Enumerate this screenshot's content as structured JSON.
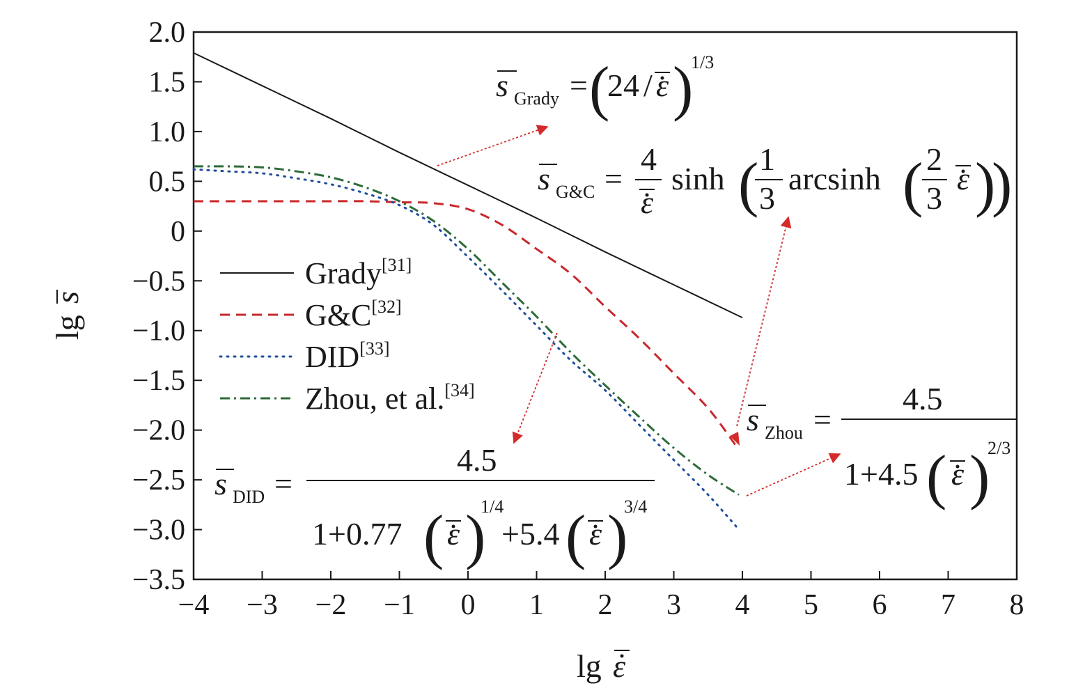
{
  "chart_data": {
    "type": "line",
    "x_range": [
      -4,
      8
    ],
    "y_range": [
      -3.5,
      2.0
    ],
    "x_ticks": [
      "−4",
      "−3",
      "−2",
      "−1",
      "0",
      "1",
      "2",
      "3",
      "4",
      "5",
      "6",
      "7",
      "8"
    ],
    "y_ticks": [
      "2.0",
      "1.5",
      "1.0",
      "0.5",
      "0",
      "−0.5",
      "−1.0",
      "−1.5",
      "−2.0",
      "−2.5",
      "−3.0",
      "−3.5"
    ],
    "xlabel": {
      "prefix": "lg",
      "symbol": "ε"
    },
    "ylabel": {
      "prefix": "lg",
      "symbol": "s"
    },
    "legend_position": "left",
    "series": [
      {
        "name": "Grady",
        "ref": "[31]",
        "color": "#1a1a1a",
        "dash": "solid",
        "x": [
          -4,
          -3,
          -2,
          -1,
          0,
          1,
          2,
          3,
          4
        ],
        "y": [
          1.79,
          1.46,
          1.13,
          0.79,
          0.46,
          0.13,
          -0.21,
          -0.54,
          -0.87
        ]
      },
      {
        "name": "G&C",
        "ref": "[32]",
        "color": "#c8282d",
        "dash": "dashed",
        "x": [
          -4,
          -3,
          -2,
          -1.5,
          -1,
          -0.5,
          0,
          0.5,
          1,
          1.5,
          2,
          2.5,
          3,
          3.5,
          3.9
        ],
        "y": [
          0.3,
          0.3,
          0.3,
          0.3,
          0.29,
          0.28,
          0.22,
          0.06,
          -0.18,
          -0.43,
          -0.76,
          -1.08,
          -1.43,
          -1.78,
          -2.15
        ]
      },
      {
        "name": "DID",
        "ref": "[33]",
        "color": "#1f4e9c",
        "dash": "dotted",
        "x": [
          -4,
          -3.5,
          -3,
          -2.5,
          -2,
          -1.5,
          -1,
          -0.5,
          0,
          0.5,
          1,
          1.5,
          2,
          2.5,
          3,
          3.5,
          3.95
        ],
        "y": [
          0.62,
          0.6,
          0.58,
          0.53,
          0.47,
          0.38,
          0.26,
          0.06,
          -0.26,
          -0.6,
          -0.95,
          -1.3,
          -1.6,
          -1.95,
          -2.3,
          -2.65,
          -3.0
        ]
      },
      {
        "name": "Zhou, et al.",
        "ref": "[34]",
        "color": "#2e6b3a",
        "dash": "dashdot",
        "x": [
          -4,
          -3.5,
          -3,
          -2.5,
          -2,
          -1.5,
          -1,
          -0.5,
          0,
          0.5,
          1,
          1.5,
          2,
          2.5,
          3,
          3.5,
          3.95
        ],
        "y": [
          0.65,
          0.65,
          0.64,
          0.6,
          0.54,
          0.44,
          0.3,
          0.1,
          -0.18,
          -0.52,
          -0.86,
          -1.22,
          -1.55,
          -1.87,
          -2.18,
          -2.45,
          -2.65
        ]
      }
    ],
    "annotations": {
      "grady": {
        "subscript": "Grady",
        "number": "24",
        "exponent": "1/3"
      },
      "gc": {
        "subscript": "G&C",
        "numerator": "4",
        "sinh": "sinh",
        "third_num": "1",
        "third_den": "3",
        "arcsinh": "arcsinh",
        "two_thirds_num": "2",
        "two_thirds_den": "3"
      },
      "zhou": {
        "subscript": "Zhou",
        "numerator": "4.5",
        "den_prefix": "1+4.5",
        "exponent": "2/3"
      },
      "did": {
        "subscript": "DID",
        "numerator": "4.5",
        "den_term1": "1+0.77",
        "exp1": "1/4",
        "den_term2": "+5.4",
        "exp2": "3/4"
      }
    },
    "arrow_color": "#d42a2a"
  }
}
